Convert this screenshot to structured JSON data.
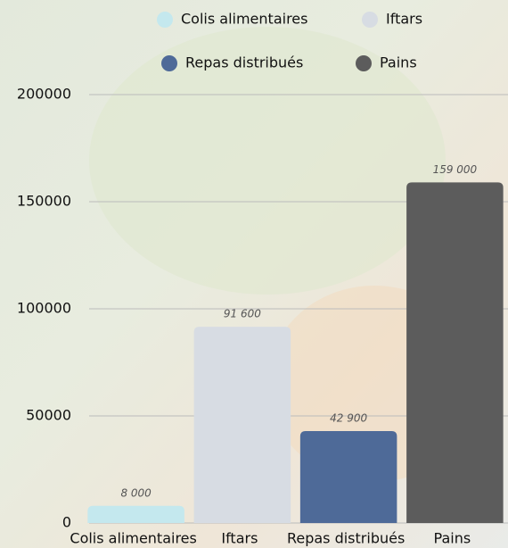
{
  "chart_data": {
    "type": "bar",
    "categories": [
      "Colis alimentaires",
      "Iftars",
      "Repas distribués",
      "Pains"
    ],
    "values": [
      8000,
      91600,
      42900,
      159000
    ],
    "value_labels": [
      "8 000",
      "91 600",
      "42 900",
      "159 000"
    ],
    "colors": [
      "#c4e8ee",
      "#d7dce3",
      "#4e6a98",
      "#5c5c5c"
    ],
    "ylim": [
      0,
      200000
    ],
    "yticks": [
      0,
      50000,
      100000,
      150000,
      200000
    ],
    "grid": true
  }
}
